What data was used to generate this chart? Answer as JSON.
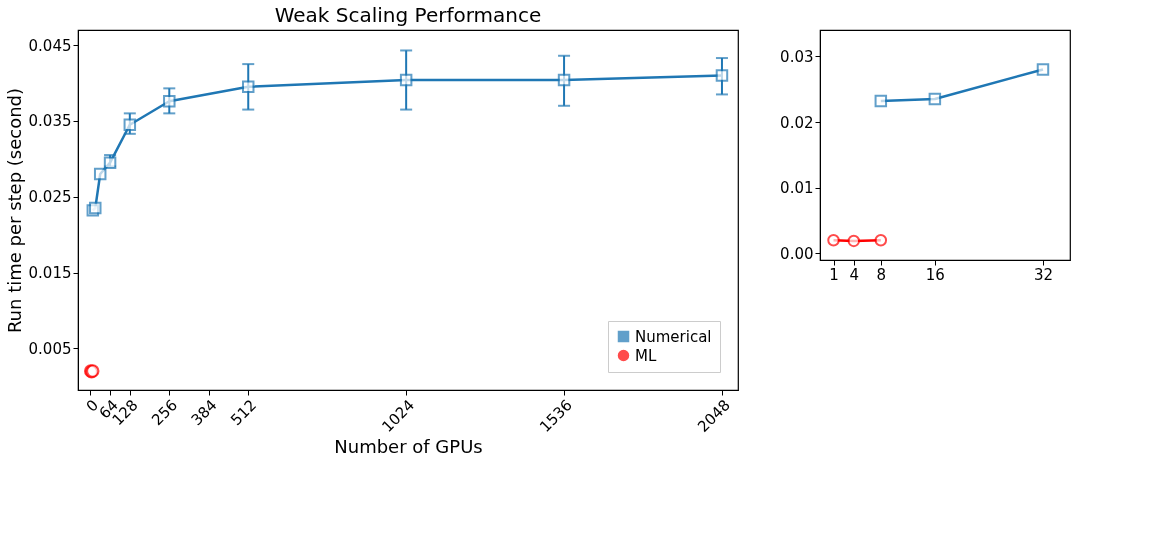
{
  "chart_data": [
    {
      "type": "line",
      "title": "Weak Scaling Performance",
      "xlabel": "Number of GPUs",
      "ylabel": "Run time per step (second)",
      "xlim": [
        -40,
        2100
      ],
      "xticks": [
        0,
        64,
        128,
        256,
        384,
        512,
        1024,
        1536,
        2048
      ],
      "ylim": [
        -0.0005,
        0.047
      ],
      "yticks": [
        0.005,
        0.015,
        0.025,
        0.035,
        0.045
      ],
      "legend": "bottom right",
      "grid": false,
      "series": [
        {
          "name": "Numerical",
          "color": "#1f77b4",
          "marker": "square",
          "x": [
            8,
            16,
            32,
            64,
            128,
            256,
            512,
            1024,
            1536,
            2048
          ],
          "values": [
            0.0232,
            0.0235,
            0.028,
            0.0295,
            0.0345,
            0.0376,
            0.0395,
            0.0404,
            0.0404,
            0.041
          ],
          "errors": [
            null,
            null,
            null,
            [
              0.029,
              0.0305
            ],
            [
              0.0333,
              0.036
            ],
            [
              0.036,
              0.0393
            ],
            [
              0.0365,
              0.0425
            ],
            [
              0.0365,
              0.0443
            ],
            [
              0.037,
              0.0436
            ],
            [
              0.0385,
              0.0433
            ]
          ]
        },
        {
          "name": "ML",
          "type": "scatter",
          "color": "#ff0000",
          "marker": "circle",
          "x": [
            1,
            4,
            8
          ],
          "values": [
            0.002,
            0.0019,
            0.002
          ],
          "errors": [
            null,
            null,
            null
          ]
        }
      ]
    },
    {
      "type": "line",
      "xlim": [
        -1,
        36
      ],
      "xticks": [
        1,
        4,
        8,
        16,
        32
      ],
      "ylim": [
        -0.001,
        0.034
      ],
      "yticks": [
        {
          "value": 0,
          "label": "0.00"
        },
        {
          "value": 0.01,
          "label": "0.01"
        },
        {
          "value": 0.02,
          "label": "0.02"
        },
        {
          "value": 0.03,
          "label": "0.03"
        }
      ],
      "legend": false,
      "grid": false,
      "series": [
        {
          "color": "#1f77b4",
          "marker": "square",
          "x": [
            8,
            16,
            32
          ],
          "values": [
            0.0232,
            0.0235,
            0.028
          ],
          "errors": [
            null,
            null,
            null
          ]
        },
        {
          "color": "#ff0000",
          "marker": "circle",
          "x": [
            1,
            4,
            8
          ],
          "values": [
            0.002,
            0.0019,
            0.002
          ],
          "errors": [
            null,
            null,
            null
          ]
        }
      ]
    }
  ]
}
